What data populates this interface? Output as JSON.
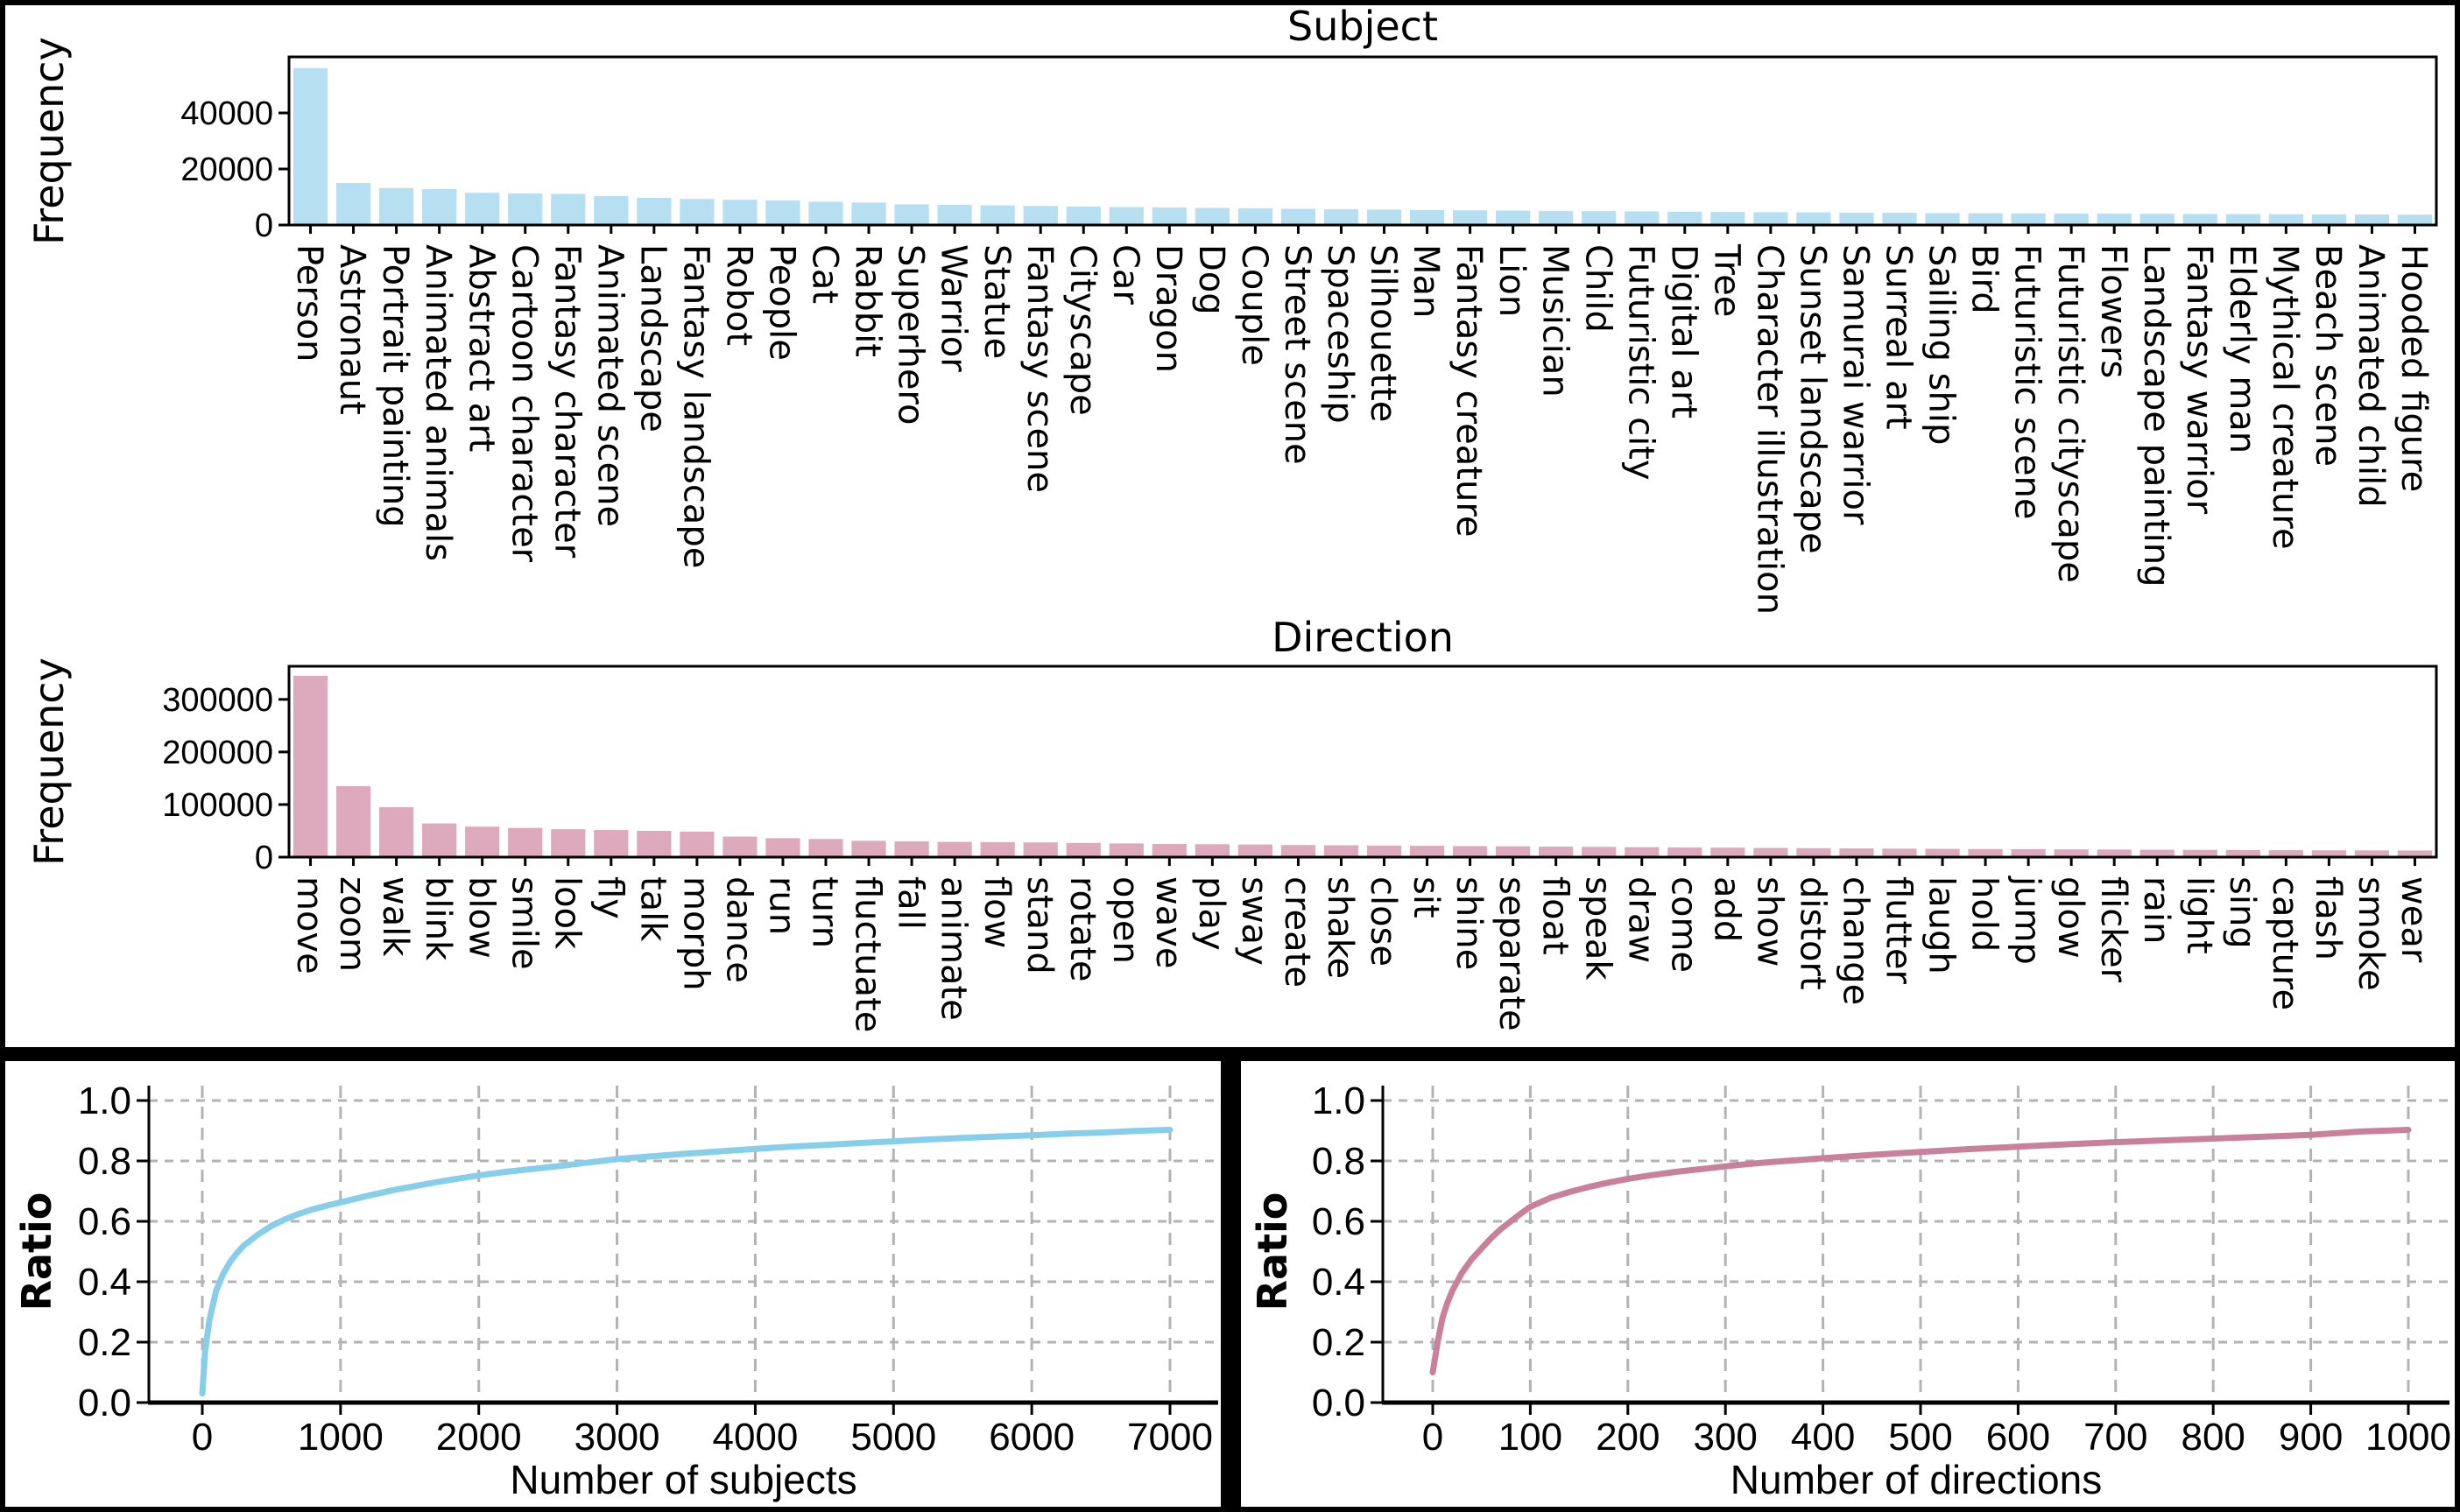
{
  "figure": {
    "background": "#000000",
    "panel_background": "#ffffff",
    "grid_color": "#b3b3b3",
    "axis_color": "#000000"
  },
  "chart_data": [
    {
      "id": "subject",
      "type": "bar",
      "title": "Subject",
      "ylabel": "Frequency",
      "bar_color": "#b6dff2",
      "ylim": [
        0,
        60000
      ],
      "yticks": [
        0,
        20000,
        40000
      ],
      "grid": false,
      "categories": [
        "Person",
        "Astronaut",
        "Portrait painting",
        "Animated animals",
        "Abstract art",
        "Cartoon character",
        "Fantasy character",
        "Animated scene",
        "Landscape",
        "Fantasy landscape",
        "Robot",
        "People",
        "Cat",
        "Rabbit",
        "Superhero",
        "Warrior",
        "Statue",
        "Fantasy scene",
        "Cityscape",
        "Car",
        "Dragon",
        "Dog",
        "Couple",
        "Street scene",
        "Spaceship",
        "Silhouette",
        "Man",
        "Fantasy creature",
        "Lion",
        "Musician",
        "Child",
        "Futuristic city",
        "Digital art",
        "Tree",
        "Character illustration",
        "Sunset landscape",
        "Samurai warrior",
        "Surreal art",
        "Sailing ship",
        "Bird",
        "Futuristic scene",
        "Futuristic cityscape",
        "Flowers",
        "Landscape painting",
        "Fantasy warrior",
        "Elderly man",
        "Mythical creature",
        "Beach scene",
        "Animated child",
        "Hooded figure"
      ],
      "values": [
        56000,
        15000,
        13200,
        12800,
        11500,
        11300,
        11100,
        10300,
        9700,
        9300,
        9000,
        8800,
        8300,
        8000,
        7400,
        7200,
        7000,
        6800,
        6600,
        6400,
        6250,
        6100,
        5950,
        5800,
        5650,
        5500,
        5350,
        5250,
        5150,
        5050,
        4950,
        4850,
        4750,
        4650,
        4550,
        4500,
        4400,
        4350,
        4250,
        4200,
        4150,
        4100,
        4050,
        4000,
        3950,
        3900,
        3850,
        3800,
        3750,
        3700
      ]
    },
    {
      "id": "direction",
      "type": "bar",
      "title": "Direction",
      "ylabel": "Frequency",
      "bar_color": "#dcaabc",
      "ylim": [
        0,
        363000
      ],
      "yticks": [
        0,
        100000,
        200000,
        300000
      ],
      "grid": false,
      "categories": [
        "move",
        "zoom",
        "walk",
        "blink",
        "blow",
        "smile",
        "look",
        "fly",
        "talk",
        "morph",
        "dance",
        "run",
        "turn",
        "fluctuate",
        "fall",
        "animate",
        "flow",
        "stand",
        "rotate",
        "open",
        "wave",
        "play",
        "sway",
        "create",
        "shake",
        "close",
        "sit",
        "shine",
        "separate",
        "float",
        "speak",
        "draw",
        "come",
        "add",
        "show",
        "distort",
        "change",
        "flutter",
        "laugh",
        "hold",
        "jump",
        "glow",
        "flicker",
        "rain",
        "light",
        "sing",
        "capture",
        "flash",
        "smoke",
        "wear"
      ],
      "values": [
        345000,
        135000,
        95000,
        64000,
        58000,
        55500,
        53000,
        51500,
        50000,
        48500,
        39000,
        36000,
        34500,
        31000,
        30000,
        29000,
        28500,
        28000,
        27000,
        26000,
        25000,
        24500,
        24000,
        23000,
        22500,
        22000,
        21500,
        21000,
        20500,
        20000,
        19500,
        19000,
        18500,
        18000,
        17500,
        17000,
        16600,
        16200,
        15800,
        15400,
        15000,
        14700,
        14400,
        14100,
        13800,
        13500,
        13200,
        13000,
        12800,
        12600
      ]
    },
    {
      "id": "subjects_cumulative",
      "type": "line",
      "xlabel": "Number of subjects",
      "ylabel": "Ratio",
      "line_color": "#87ceeb",
      "grid": true,
      "xticks": [
        0,
        1000,
        2000,
        3000,
        4000,
        5000,
        6000,
        7000
      ],
      "yticks": [
        0.0,
        0.2,
        0.4,
        0.6,
        0.8,
        1.0
      ],
      "xlim": [
        0,
        7000
      ],
      "ylim": [
        0,
        1.0
      ],
      "x": [
        0,
        20,
        50,
        100,
        150,
        200,
        250,
        300,
        400,
        500,
        600,
        700,
        800,
        900,
        1000,
        1200,
        1400,
        1600,
        1800,
        2000,
        2200,
        2400,
        2600,
        2800,
        3000,
        3250,
        3500,
        3750,
        4000,
        4250,
        4500,
        4750,
        5000,
        5250,
        5500,
        5750,
        6000,
        6250,
        6500,
        6750,
        7000
      ],
      "y": [
        0.03,
        0.17,
        0.27,
        0.37,
        0.425,
        0.465,
        0.495,
        0.52,
        0.555,
        0.585,
        0.607,
        0.625,
        0.64,
        0.652,
        0.663,
        0.685,
        0.705,
        0.722,
        0.738,
        0.752,
        0.764,
        0.774,
        0.784,
        0.795,
        0.806,
        0.815,
        0.824,
        0.832,
        0.84,
        0.847,
        0.853,
        0.859,
        0.865,
        0.871,
        0.876,
        0.881,
        0.885,
        0.89,
        0.894,
        0.899,
        0.903
      ]
    },
    {
      "id": "directions_cumulative",
      "type": "line",
      "xlabel": "Number of directions",
      "ylabel": "Ratio",
      "line_color": "#c9809a",
      "grid": true,
      "xticks": [
        0,
        100,
        200,
        300,
        400,
        500,
        600,
        700,
        800,
        900,
        1000
      ],
      "yticks": [
        0.0,
        0.2,
        0.4,
        0.6,
        0.8,
        1.0
      ],
      "xlim": [
        0,
        1000
      ],
      "ylim": [
        0,
        1.0
      ],
      "x": [
        0,
        5,
        10,
        15,
        20,
        30,
        40,
        50,
        60,
        70,
        80,
        90,
        100,
        120,
        140,
        160,
        180,
        200,
        225,
        250,
        275,
        300,
        325,
        350,
        375,
        400,
        450,
        500,
        550,
        600,
        650,
        700,
        750,
        800,
        850,
        900,
        950,
        1000
      ],
      "y": [
        0.1,
        0.2,
        0.28,
        0.33,
        0.37,
        0.43,
        0.475,
        0.51,
        0.545,
        0.575,
        0.6,
        0.625,
        0.648,
        0.677,
        0.697,
        0.714,
        0.728,
        0.741,
        0.753,
        0.764,
        0.773,
        0.782,
        0.79,
        0.797,
        0.803,
        0.809,
        0.82,
        0.83,
        0.839,
        0.847,
        0.855,
        0.862,
        0.868,
        0.874,
        0.88,
        0.886,
        0.897,
        0.903
      ]
    }
  ]
}
